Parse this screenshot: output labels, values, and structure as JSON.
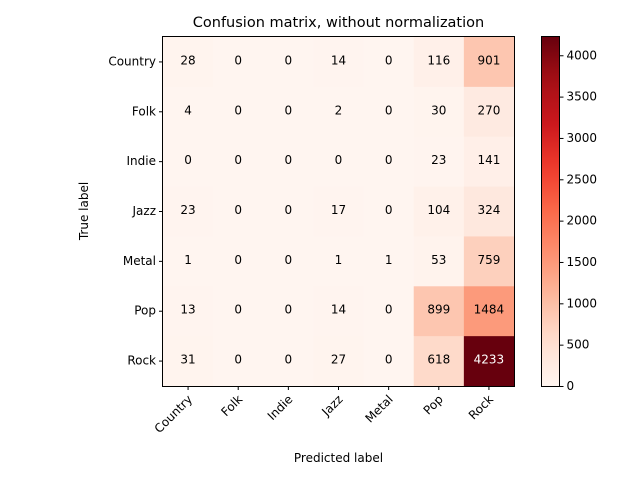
{
  "chart_data": {
    "type": "heatmap",
    "title": "Confusion matrix, without normalization",
    "xlabel": "Predicted label",
    "ylabel": "True label",
    "x_categories": [
      "Country",
      "Folk",
      "Indie",
      "Jazz",
      "Metal",
      "Pop",
      "Rock"
    ],
    "y_categories": [
      "Country",
      "Folk",
      "Indie",
      "Jazz",
      "Metal",
      "Pop",
      "Rock"
    ],
    "matrix": [
      [
        28,
        0,
        0,
        14,
        0,
        116,
        901
      ],
      [
        4,
        0,
        0,
        2,
        0,
        30,
        270
      ],
      [
        0,
        0,
        0,
        0,
        0,
        23,
        141
      ],
      [
        23,
        0,
        0,
        17,
        0,
        104,
        324
      ],
      [
        1,
        0,
        0,
        1,
        1,
        53,
        759
      ],
      [
        13,
        0,
        0,
        14,
        0,
        899,
        1484
      ],
      [
        31,
        0,
        0,
        27,
        0,
        618,
        4233
      ]
    ],
    "colormap": "Reds",
    "vmin": 0,
    "vmax": 4233,
    "colorbar_ticks": [
      0,
      500,
      1000,
      1500,
      2000,
      2500,
      3000,
      3500,
      4000
    ],
    "x_tick_rotation": 45
  }
}
